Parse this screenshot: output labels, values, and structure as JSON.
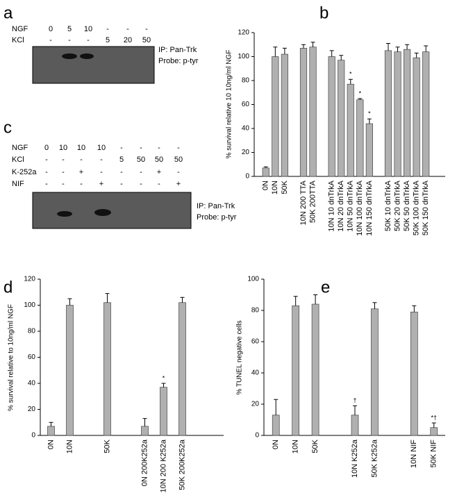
{
  "blots": [
    {
      "panel": "a",
      "rows": [
        {
          "label": "NGF",
          "cells": [
            "0",
            "5",
            "10",
            "-",
            "-",
            "-"
          ]
        },
        {
          "label": "KCl",
          "cells": [
            "-",
            "-",
            "-",
            "5",
            "20",
            "50"
          ]
        }
      ],
      "ip": "IP: Pan-Trk",
      "probe": "Probe: p-tyr"
    },
    {
      "panel": "c",
      "rows": [
        {
          "label": "NGF",
          "cells": [
            "0",
            "10",
            "10",
            "10",
            "-",
            "-",
            "-",
            "-"
          ]
        },
        {
          "label": "KCl",
          "cells": [
            "-",
            "-",
            "-",
            "-",
            "5",
            "50",
            "50",
            "50"
          ]
        },
        {
          "label": "K-252a",
          "cells": [
            "-",
            "-",
            "+",
            "-",
            "-",
            "-",
            "+",
            "-"
          ]
        },
        {
          "label": "NIF",
          "cells": [
            "-",
            "-",
            "-",
            "+",
            "-",
            "-",
            "-",
            "+"
          ]
        }
      ],
      "ip": "IP: Pan-Trk",
      "probe": "Probe: p-tyr"
    }
  ],
  "chart_data": [
    {
      "type": "bar",
      "panel": "b",
      "y_label": "% survival relative 10 10ng/ml NGF",
      "categories": [
        "0N",
        "10N",
        "50K",
        null,
        "10N 200 TTA",
        "50K 200TTA",
        null,
        "10N 10 dnTrkA",
        "10N 20 dnTrkA",
        "10N 50 dnTrkA",
        "10N 100 dnTrkA",
        "10N 150 dnTrkA",
        null,
        "50K 10 dnTrkA",
        "50K 20 dnTrkA",
        "50K 50 dnTrkA",
        "50K 100 dnTrkA",
        "50K 150 dnTrkA"
      ],
      "values": [
        7,
        100,
        102,
        null,
        107,
        108,
        null,
        100,
        97,
        77,
        64,
        44,
        null,
        105,
        104,
        106,
        99,
        104
      ],
      "errors": [
        1,
        8,
        5,
        null,
        3,
        4,
        null,
        5,
        4,
        4,
        1,
        4,
        null,
        6,
        4,
        4,
        4,
        5
      ],
      "annotations": [
        {
          "index": 9,
          "text": "*"
        },
        {
          "index": 10,
          "text": "*"
        },
        {
          "index": 11,
          "text": "*"
        }
      ],
      "color": "#b0b0b0",
      "ylim": [
        0,
        120
      ],
      "yticks": [
        0,
        20,
        40,
        60,
        80,
        100,
        120
      ]
    },
    {
      "type": "bar",
      "panel": "d",
      "y_label": "% survival relative to 10ng/ml NGF",
      "categories": [
        "0N",
        "10N",
        null,
        "50K",
        null,
        "0N 200K252a",
        "10N 200 K252a",
        "50K 200K252a"
      ],
      "values": [
        7,
        100,
        null,
        102,
        null,
        7,
        37,
        102
      ],
      "errors": [
        3,
        5,
        null,
        7,
        null,
        6,
        3,
        4
      ],
      "annotations": [
        {
          "index": 6,
          "text": "*"
        }
      ],
      "color": "#b0b0b0",
      "ylim": [
        0,
        120
      ],
      "yticks": [
        0,
        20,
        40,
        60,
        80,
        100,
        120
      ]
    },
    {
      "type": "bar",
      "panel": "e",
      "y_label": "% TUNEL negative cells",
      "categories": [
        "0N",
        "10N",
        "50K",
        null,
        "10N K252a",
        "50K K252a",
        null,
        "10N NIF",
        "50K NIF"
      ],
      "values": [
        13,
        83,
        84,
        null,
        13,
        81,
        null,
        79,
        5
      ],
      "errors": [
        10,
        6,
        6,
        null,
        6,
        4,
        null,
        4,
        3
      ],
      "annotations": [
        {
          "index": 4,
          "text": "†"
        },
        {
          "index": 8,
          "text": "*†"
        }
      ],
      "color": "#b0b0b0",
      "ylim": [
        0,
        100
      ],
      "yticks": [
        0,
        20,
        40,
        60,
        80,
        100
      ]
    }
  ]
}
